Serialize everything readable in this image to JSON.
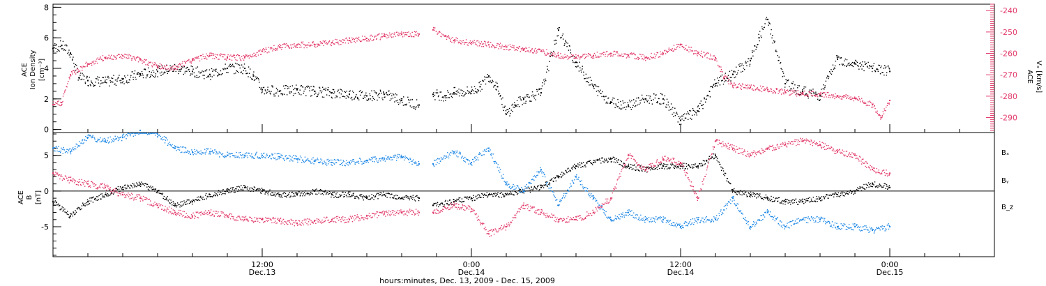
{
  "colors": {
    "black": "#000000",
    "pink": "#e23a6a",
    "blue": "#1e88e5"
  },
  "x_axis": {
    "ticks": [
      {
        "hours": 12,
        "time": "12:00",
        "date": "Dec.13"
      },
      {
        "hours": 24,
        "time": "0:00",
        "date": "Dec.14"
      },
      {
        "hours": 36,
        "time": "12:00",
        "date": "Dec.14"
      },
      {
        "hours": 48,
        "time": "0:00",
        "date": "Dec.15"
      }
    ],
    "title": "hours:minutes, Dec. 13, 2009 - Dec. 15, 2009",
    "range_hours": [
      0,
      54
    ]
  },
  "chart_data": [
    {
      "type": "scatter",
      "left_axis": {
        "label_line1": "ACE",
        "label_line2": "Ion Density",
        "label_units": "[cm⁻³]",
        "range": [
          -0.2,
          8.2
        ],
        "ticks": [
          "0",
          "2",
          "4",
          "6",
          "8"
        ]
      },
      "right_axis": {
        "label_line1": "ACE",
        "label_line2": "Vₓ [km/s]",
        "range": [
          -297,
          -237
        ],
        "ticks": [
          "-240",
          "-250",
          "-260",
          "-270",
          "-280",
          "-290"
        ],
        "color": "#e23a6a"
      },
      "series": [
        {
          "axis": "left",
          "color": "#000000",
          "segments": [
            {
              "x": [
                0,
                0.5,
                1,
                1.5,
                2,
                3,
                4,
                5,
                6,
                7,
                8,
                9,
                10,
                11,
                11.5,
                12,
                13,
                14,
                15,
                16,
                17,
                18,
                19,
                20,
                21
              ],
              "y": [
                5.3,
                5.5,
                5.0,
                3.4,
                3.2,
                3.1,
                3.3,
                3.6,
                3.8,
                4.0,
                3.8,
                3.6,
                4.0,
                4.0,
                3.5,
                2.6,
                2.5,
                2.6,
                2.5,
                2.4,
                2.3,
                2.2,
                2.3,
                1.9,
                1.6
              ]
            },
            {
              "x": [
                21.8,
                22.5,
                23,
                24,
                24.5,
                25,
                25.5,
                26,
                26.5,
                27,
                28,
                29,
                30,
                31,
                32,
                33,
                34,
                35,
                36,
                37,
                38,
                39,
                40,
                40.5,
                41,
                42,
                43,
                44,
                45,
                46,
                47,
                48
              ],
              "y": [
                2.3,
                2.2,
                2.4,
                2.5,
                2.8,
                3.5,
                2.8,
                1.0,
                1.6,
                2.0,
                2.4,
                6.5,
                4.4,
                2.8,
                1.8,
                1.6,
                2.0,
                2.0,
                0.6,
                1.2,
                3.0,
                3.6,
                4.5,
                6.0,
                7.2,
                3.0,
                2.5,
                2.2,
                4.6,
                4.3,
                4.0,
                3.8
              ]
            }
          ]
        },
        {
          "axis": "right",
          "color": "#e23a6a",
          "segments": [
            {
              "x": [
                0,
                0.5,
                1,
                2,
                3,
                4,
                5,
                6,
                7,
                8,
                9,
                10,
                11,
                12,
                13,
                14,
                15,
                16,
                17,
                18,
                19,
                20,
                21
              ],
              "y": [
                -284,
                -283,
                -270,
                -265,
                -262,
                -261,
                -263,
                -266,
                -267,
                -263,
                -261,
                -262,
                -262,
                -259,
                -257,
                -256,
                -256,
                -255,
                -254,
                -253,
                -252,
                -251,
                -251
              ]
            },
            {
              "x": [
                21.8,
                22.5,
                23,
                24,
                25,
                26,
                27,
                28,
                29,
                30,
                31,
                32,
                33,
                34,
                35,
                36,
                37,
                38,
                38.5,
                39,
                40,
                41,
                42,
                43,
                44,
                45,
                46,
                47,
                47.5,
                48
              ],
              "y": [
                -249,
                -252,
                -254,
                -255,
                -256,
                -257,
                -258,
                -259,
                -261,
                -262,
                -261,
                -260,
                -261,
                -262,
                -260,
                -256,
                -260,
                -262,
                -271,
                -275,
                -276,
                -277,
                -278,
                -279,
                -279,
                -280,
                -281,
                -284,
                -290,
                -282
              ]
            }
          ]
        }
      ]
    },
    {
      "type": "scatter",
      "left_axis": {
        "label_line1": "ACE",
        "label_line2": "B",
        "label_units": "[nT]",
        "range": [
          -9.2,
          8.2
        ],
        "ticks": [
          "5",
          "0",
          "-5"
        ]
      },
      "series": [
        {
          "name": "Bₓ",
          "color": "#000000",
          "segments": [
            {
              "x": [
                0,
                1,
                2,
                3,
                4,
                5,
                6,
                7,
                8,
                9,
                10,
                11,
                12,
                13,
                14,
                15,
                16,
                17,
                18,
                19,
                20,
                21
              ],
              "y": [
                -1.5,
                -3.5,
                -1.5,
                -0.5,
                0.5,
                1,
                0,
                -2,
                -1.5,
                -0.5,
                0,
                0.5,
                0,
                -0.5,
                -0.5,
                0,
                -0.5,
                -0.5,
                -1,
                -0.5,
                -1,
                -1
              ]
            },
            {
              "x": [
                21.8,
                23,
                24,
                25,
                26,
                27,
                28,
                29,
                30,
                31,
                32,
                33,
                34,
                35,
                36,
                37,
                38,
                39,
                40,
                41,
                42,
                43,
                44,
                45,
                46,
                47,
                48
              ],
              "y": [
                -2,
                -1.5,
                -1,
                -0.5,
                -0.5,
                0,
                0.5,
                2,
                3.5,
                4,
                4.5,
                3.5,
                3,
                3.5,
                3.5,
                3.5,
                5,
                0,
                -0.5,
                -1,
                -1.5,
                -1.5,
                -1,
                -0.5,
                0,
                1,
                0.5
              ]
            }
          ]
        },
        {
          "name": "Bᵧ",
          "color": "#1e88e5",
          "segments": [
            {
              "x": [
                0,
                1,
                2,
                3,
                4,
                5,
                6,
                7,
                8,
                9,
                10,
                11,
                12,
                13,
                14,
                15,
                16,
                17,
                18,
                19,
                20,
                21
              ],
              "y": [
                6,
                5.5,
                7.5,
                7,
                7.5,
                8.5,
                8,
                6,
                5.5,
                5.5,
                5,
                5,
                5,
                4.8,
                4.5,
                4.2,
                4,
                4,
                4.3,
                4.5,
                4.8,
                3.8
              ]
            },
            {
              "x": [
                21.8,
                23,
                24,
                25,
                26,
                27,
                28,
                29,
                30,
                31,
                32,
                33,
                34,
                35,
                36,
                37,
                38,
                39,
                40,
                41,
                42,
                43,
                44,
                45,
                46,
                47,
                48
              ],
              "y": [
                3.8,
                5.5,
                4,
                6,
                1,
                0,
                3,
                -2,
                2,
                -1,
                -4,
                -3,
                -4,
                -4,
                -5,
                -4,
                -4,
                -1,
                -5,
                -3,
                -5,
                -4,
                -4,
                -5,
                -5,
                -5.5,
                -5
              ]
            }
          ]
        },
        {
          "name": "B_z",
          "color": "#e23a6a",
          "segments": [
            {
              "x": [
                0,
                1,
                2,
                3,
                4,
                5,
                6,
                7,
                8,
                9,
                10,
                11,
                12,
                13,
                14,
                15,
                16,
                17,
                18,
                19,
                20,
                21
              ],
              "y": [
                2.5,
                1.5,
                1,
                0.5,
                -0.5,
                -1,
                -2,
                -3,
                -3.5,
                -3,
                -3.5,
                -4,
                -4,
                -4.2,
                -4.5,
                -4.2,
                -4,
                -4,
                -3.5,
                -3.2,
                -3,
                -3
              ]
            },
            {
              "x": [
                21.8,
                23,
                24,
                25,
                26,
                27,
                28,
                29,
                30,
                31,
                32,
                33,
                34,
                35,
                36,
                37,
                38,
                39,
                40,
                41,
                42,
                43,
                44,
                45,
                46,
                47,
                48
              ],
              "y": [
                -3,
                -2,
                -2.5,
                -6,
                -5,
                -2,
                -3,
                -4,
                -4,
                -3,
                -1,
                5,
                3,
                4.5,
                4,
                -1,
                7,
                6,
                5,
                6,
                6.5,
                7,
                6.5,
                5.5,
                5,
                3,
                2.5
              ]
            }
          ]
        }
      ]
    }
  ]
}
